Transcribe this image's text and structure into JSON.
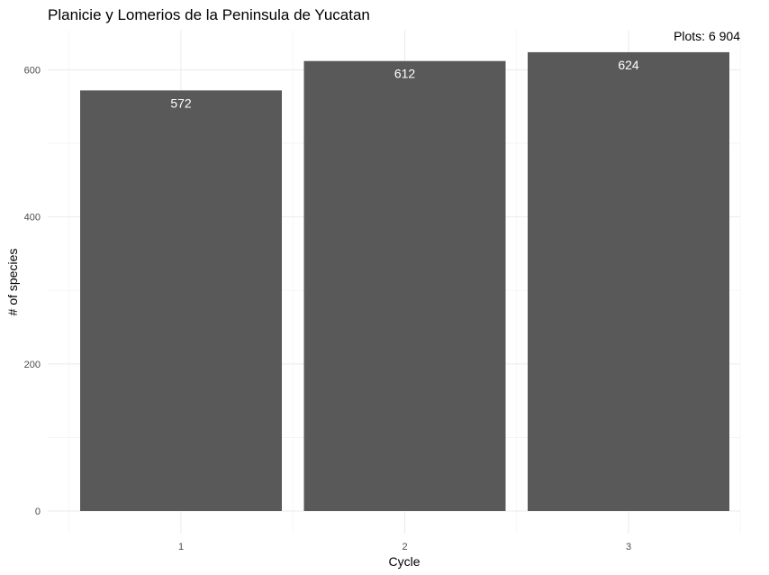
{
  "chart_data": {
    "type": "bar",
    "title": "Planicie y Lomerios de la Peninsula de Yucatan",
    "annotation": "Plots: 6 904",
    "xlabel": "Cycle",
    "ylabel": "# of species",
    "categories": [
      "1",
      "2",
      "3"
    ],
    "values": [
      572,
      612,
      624
    ],
    "data_labels": [
      "572",
      "612",
      "624"
    ],
    "ylim": [
      0,
      650
    ],
    "yticks": [
      0,
      200,
      400,
      600
    ],
    "ytick_labels": [
      "0",
      "200",
      "400",
      "600"
    ],
    "grid": true,
    "bar_color": "#595959",
    "label_color": "#ffffff"
  }
}
